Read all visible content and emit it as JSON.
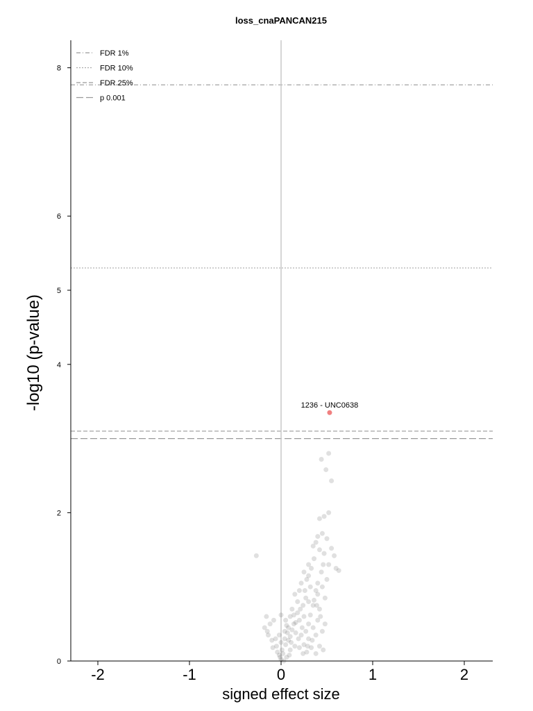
{
  "chart_data": {
    "type": "scatter",
    "title": "loss_cnaPANCAN215",
    "xlabel": "signed effect size",
    "ylabel": "-log10 (p-value)",
    "xlim": [
      -2.3,
      2.3
    ],
    "ylim": [
      0,
      8.4
    ],
    "x_ticks": [
      -2,
      -1,
      0,
      1,
      2
    ],
    "x_tick_labels": [
      "-2",
      "-1",
      "0",
      "1",
      "2"
    ],
    "y_ticks": [
      0,
      2,
      4,
      5,
      6,
      8
    ],
    "y_tick_labels": [
      "0",
      "2",
      "4",
      "5",
      "6",
      "8"
    ],
    "grid": false,
    "legend_position": "top-left",
    "thresholds": [
      {
        "name": "FDR 1%",
        "y": 7.77,
        "dash": "6,3,1,3",
        "color": "#999999"
      },
      {
        "name": "FDR 10%",
        "y": 5.3,
        "dash": "2,2",
        "color": "#aaaaaa"
      },
      {
        "name": "FDR 25%",
        "y": 3.1,
        "dash": "6,3",
        "color": "#999999"
      },
      {
        "name": "p 0.001",
        "y": 3.0,
        "dash": "10,4",
        "color": "#999999"
      }
    ],
    "highlight": {
      "label": "1236 - UNC0638",
      "x": 0.53,
      "y": 3.35,
      "color": "#f08080"
    },
    "points": [
      [
        -0.27,
        1.42
      ],
      [
        0.52,
        2.8
      ],
      [
        0.44,
        2.72
      ],
      [
        0.49,
        2.58
      ],
      [
        0.55,
        2.43
      ],
      [
        0.52,
        2.0
      ],
      [
        0.47,
        1.95
      ],
      [
        0.42,
        1.92
      ],
      [
        0.45,
        1.72
      ],
      [
        0.4,
        1.68
      ],
      [
        0.38,
        1.6
      ],
      [
        0.5,
        1.65
      ],
      [
        0.55,
        1.52
      ],
      [
        0.58,
        1.42
      ],
      [
        0.47,
        1.45
      ],
      [
        0.42,
        1.5
      ],
      [
        0.35,
        1.55
      ],
      [
        0.6,
        1.25
      ],
      [
        0.63,
        1.22
      ],
      [
        0.3,
        1.3
      ],
      [
        0.33,
        1.25
      ],
      [
        0.25,
        1.2
      ],
      [
        0.28,
        1.1
      ],
      [
        0.4,
        1.05
      ],
      [
        0.45,
        1.0
      ],
      [
        0.38,
        0.95
      ],
      [
        0.32,
        1.0
      ],
      [
        0.22,
        1.05
      ],
      [
        0.2,
        0.95
      ],
      [
        0.15,
        0.9
      ],
      [
        0.18,
        0.8
      ],
      [
        0.27,
        0.85
      ],
      [
        0.35,
        0.75
      ],
      [
        0.42,
        0.7
      ],
      [
        0.48,
        0.85
      ],
      [
        0.5,
        1.1
      ],
      [
        0.44,
        1.2
      ],
      [
        0.36,
        1.38
      ],
      [
        0.3,
        1.15
      ],
      [
        0.24,
        0.75
      ],
      [
        0.12,
        0.7
      ],
      [
        0.1,
        0.6
      ],
      [
        0.05,
        0.55
      ],
      [
        0.0,
        0.62
      ],
      [
        0.08,
        0.45
      ],
      [
        0.14,
        0.5
      ],
      [
        0.2,
        0.55
      ],
      [
        0.25,
        0.6
      ],
      [
        0.3,
        0.5
      ],
      [
        0.35,
        0.45
      ],
      [
        0.4,
        0.55
      ],
      [
        0.45,
        0.4
      ],
      [
        0.38,
        0.35
      ],
      [
        0.3,
        0.3
      ],
      [
        0.22,
        0.35
      ],
      [
        0.16,
        0.38
      ],
      [
        0.1,
        0.33
      ],
      [
        0.04,
        0.4
      ],
      [
        -0.02,
        0.35
      ],
      [
        -0.06,
        0.3
      ],
      [
        -0.1,
        0.28
      ],
      [
        -0.15,
        0.4
      ],
      [
        -0.12,
        0.5
      ],
      [
        -0.08,
        0.55
      ],
      [
        -0.18,
        0.45
      ],
      [
        -0.16,
        0.6
      ],
      [
        -0.14,
        0.35
      ],
      [
        -0.05,
        0.2
      ],
      [
        0.0,
        0.25
      ],
      [
        0.05,
        0.22
      ],
      [
        0.1,
        0.15
      ],
      [
        0.15,
        0.2
      ],
      [
        0.2,
        0.18
      ],
      [
        0.25,
        0.22
      ],
      [
        0.28,
        0.12
      ],
      [
        0.33,
        0.18
      ],
      [
        0.38,
        0.1
      ],
      [
        0.42,
        0.2
      ],
      [
        0.46,
        0.15
      ],
      [
        0.02,
        0.1
      ],
      [
        -0.02,
        0.08
      ],
      [
        0.06,
        0.05
      ],
      [
        0.0,
        0.02
      ],
      [
        0.03,
        0.0
      ],
      [
        -0.04,
        0.12
      ],
      [
        0.08,
        0.28
      ],
      [
        0.12,
        0.42
      ],
      [
        0.18,
        0.65
      ],
      [
        0.23,
        0.45
      ],
      [
        0.27,
        0.4
      ],
      [
        0.32,
        0.62
      ],
      [
        0.36,
        0.82
      ],
      [
        0.4,
        0.9
      ],
      [
        0.46,
        1.3
      ],
      [
        0.52,
        1.3
      ],
      [
        0.26,
        0.95
      ],
      [
        0.3,
        0.8
      ],
      [
        0.14,
        0.62
      ],
      [
        0.06,
        0.48
      ],
      [
        -0.09,
        0.18
      ],
      [
        0.01,
        0.15
      ],
      [
        0.04,
        0.3
      ],
      [
        0.11,
        0.25
      ],
      [
        0.19,
        0.3
      ],
      [
        0.34,
        0.28
      ],
      [
        0.29,
        0.2
      ],
      [
        0.24,
        0.1
      ],
      [
        0.09,
        0.08
      ],
      [
        -0.01,
        0.05
      ],
      [
        0.07,
        0.38
      ],
      [
        0.16,
        0.52
      ],
      [
        0.21,
        0.7
      ],
      [
        0.43,
        0.6
      ],
      [
        0.48,
        0.5
      ],
      [
        0.39,
        0.75
      ]
    ]
  }
}
